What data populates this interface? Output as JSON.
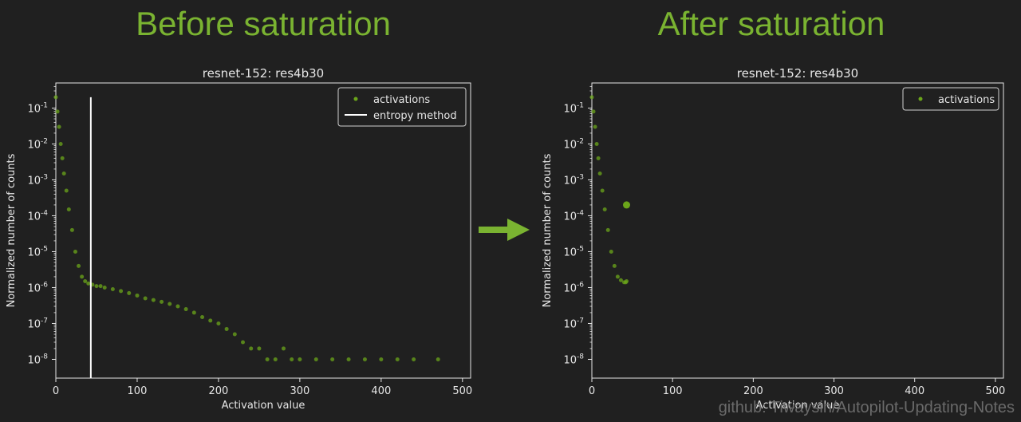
{
  "headings": {
    "left": "Before saturation",
    "right": "After saturation"
  },
  "watermark": "github: Tiwaysin/Autopilot-Updating-Notes",
  "colors": {
    "accent": "#7ab331",
    "background": "#202020",
    "axis": "#e6e6e6",
    "marker": "#6ba51a"
  },
  "arrow_icon": "right-arrow-icon",
  "chart_data": [
    {
      "type": "scatter",
      "title": "resnet-152: res4b30",
      "xlabel": "Activation value",
      "ylabel": "Normalized number of counts",
      "xlim": [
        0,
        510
      ],
      "ylim": [
        3e-09,
        0.5
      ],
      "yscale": "log",
      "xticks": [
        "0",
        "100",
        "200",
        "300",
        "400",
        "500"
      ],
      "yticks": [
        "10^-1",
        "10^-2",
        "10^-3",
        "10^-4",
        "10^-5",
        "10^-6",
        "10^-7",
        "10^-8"
      ],
      "legend_position": "top-right",
      "legend": [
        "activations",
        "entropy method"
      ],
      "threshold_line": {
        "name": "entropy method",
        "x": 43,
        "y_range": [
          3e-09,
          0.2
        ]
      },
      "series": [
        {
          "name": "activations",
          "x": [
            0,
            2,
            4,
            6,
            8,
            10,
            13,
            16,
            20,
            24,
            28,
            32,
            36,
            40,
            45,
            50,
            55,
            60,
            70,
            80,
            90,
            100,
            110,
            120,
            130,
            140,
            150,
            160,
            170,
            180,
            190,
            200,
            210,
            220,
            230,
            240,
            250,
            260,
            270,
            280,
            290,
            300,
            320,
            340,
            360,
            380,
            400,
            420,
            440,
            470
          ],
          "y": [
            0.2,
            0.08,
            0.03,
            0.01,
            0.004,
            0.0015,
            0.0005,
            0.00015,
            4e-05,
            1e-05,
            4e-06,
            2e-06,
            1.5e-06,
            1.3e-06,
            1.2e-06,
            1.1e-06,
            1.1e-06,
            1e-06,
            9e-07,
            8e-07,
            7e-07,
            6e-07,
            5e-07,
            4.5e-07,
            4e-07,
            3.5e-07,
            3e-07,
            2.5e-07,
            2e-07,
            1.5e-07,
            1.2e-07,
            1e-07,
            7e-08,
            5e-08,
            3e-08,
            2e-08,
            2e-08,
            1e-08,
            1e-08,
            2e-08,
            1e-08,
            1e-08,
            1e-08,
            1e-08,
            1e-08,
            1e-08,
            1e-08,
            1e-08,
            1e-08,
            1e-08
          ]
        }
      ]
    },
    {
      "type": "scatter",
      "title": "resnet-152: res4b30",
      "xlabel": "Activation value",
      "ylabel": "Normalized number of counts",
      "xlim": [
        0,
        510
      ],
      "ylim": [
        3e-09,
        0.5
      ],
      "yscale": "log",
      "xticks": [
        "0",
        "100",
        "200",
        "300",
        "400",
        "500"
      ],
      "yticks": [
        "10^-1",
        "10^-2",
        "10^-3",
        "10^-4",
        "10^-5",
        "10^-6",
        "10^-7",
        "10^-8"
      ],
      "legend_position": "top-right",
      "legend": [
        "activations"
      ],
      "series": [
        {
          "name": "activations",
          "x": [
            0,
            2,
            4,
            6,
            8,
            10,
            13,
            16,
            20,
            24,
            28,
            32,
            36,
            40,
            42,
            43
          ],
          "y": [
            0.2,
            0.08,
            0.03,
            0.01,
            0.004,
            0.0015,
            0.0005,
            0.00015,
            4e-05,
            1e-05,
            4e-06,
            2e-06,
            1.6e-06,
            1.4e-06,
            1.4e-06,
            1.5e-06
          ]
        },
        {
          "name": "",
          "x": [
            43
          ],
          "y": [
            0.0002
          ]
        }
      ]
    }
  ]
}
